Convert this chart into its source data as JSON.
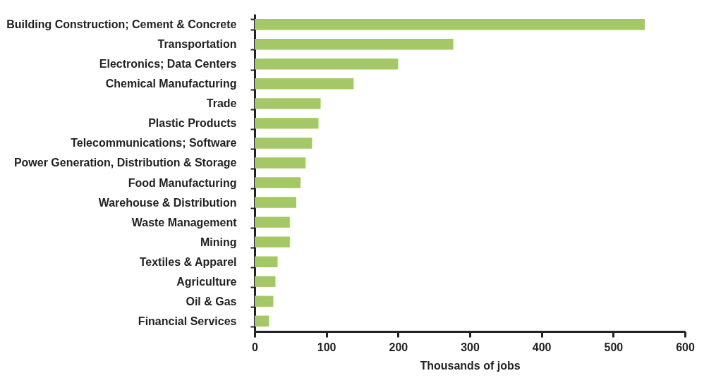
{
  "chart_data": {
    "type": "bar",
    "orientation": "horizontal",
    "xlabel": "Thousands of jobs",
    "categories": [
      "Building Construction; Cement & Concrete",
      "Transportation",
      "Electronics; Data Centers",
      "Chemical Manufacturing",
      "Trade",
      "Plastic Products",
      "Telecommunications; Software",
      "Power Generation, Distribution & Storage",
      "Food Manufacturing",
      "Warehouse & Distribution",
      "Waste Management",
      "Mining",
      "Textiles & Apparel",
      "Agriculture",
      "Oil & Gas",
      "Financial Services"
    ],
    "values": [
      544,
      277,
      200,
      138,
      92,
      89,
      80,
      71,
      64,
      58,
      49,
      49,
      32,
      29,
      26,
      20
    ],
    "color": "#a3c865",
    "xlim": [
      0,
      600
    ],
    "xticks": [
      0,
      100,
      200,
      300,
      400,
      500,
      600
    ],
    "grid": false
  }
}
